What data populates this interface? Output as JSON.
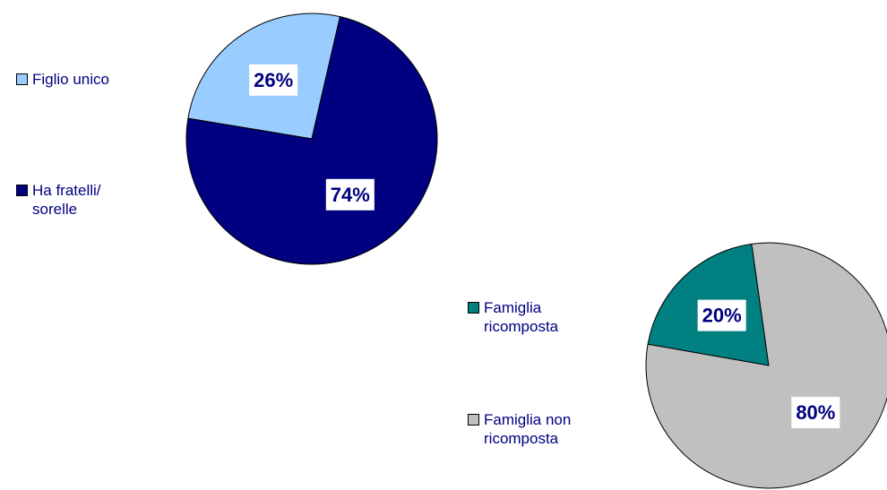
{
  "chart_data": [
    {
      "type": "pie",
      "categories": [
        "Figlio unico",
        "Ha fratelli/ sorelle"
      ],
      "values": [
        26,
        74
      ],
      "value_labels": [
        "26%",
        "74%"
      ],
      "colors": [
        "#99ccff",
        "#000080"
      ]
    },
    {
      "type": "pie",
      "categories": [
        "Famiglia ricomposta",
        "Famiglia non ricomposta"
      ],
      "values": [
        20,
        80
      ],
      "value_labels": [
        "20%",
        "80%"
      ],
      "colors": [
        "#008080",
        "#c0c0c0"
      ]
    }
  ]
}
